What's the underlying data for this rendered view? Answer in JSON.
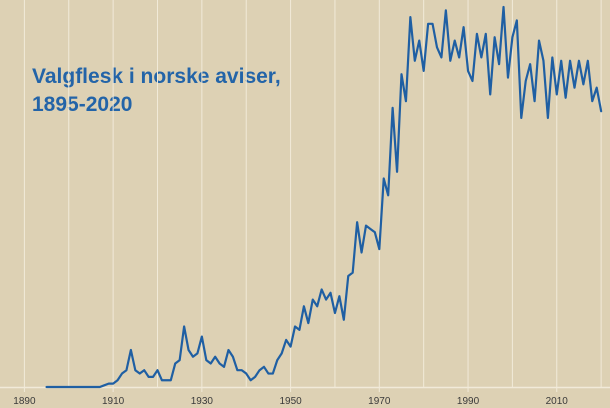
{
  "chart_data": {
    "type": "line",
    "title_lines": [
      "Valgflesk i norske aviser,",
      "1895-2020"
    ],
    "xlabel": "",
    "ylabel": "",
    "xlim": [
      1884.5,
      2022
    ],
    "ylim": [
      0,
      100
    ],
    "grid": "vertical",
    "x_ticks": [
      1890,
      1910,
      1930,
      1950,
      1970,
      1990,
      2010
    ],
    "x_tick_labels": [
      "1890",
      "1910",
      "1930",
      "1950",
      "1970",
      "1990",
      "2010"
    ],
    "series": [
      {
        "name": "",
        "x": [
          1895,
          1896,
          1897,
          1898,
          1899,
          1900,
          1901,
          1902,
          1903,
          1904,
          1905,
          1906,
          1907,
          1908,
          1909,
          1910,
          1911,
          1912,
          1913,
          1914,
          1915,
          1916,
          1917,
          1918,
          1919,
          1920,
          1921,
          1922,
          1923,
          1924,
          1925,
          1926,
          1927,
          1928,
          1929,
          1930,
          1931,
          1932,
          1933,
          1934,
          1935,
          1936,
          1937,
          1938,
          1939,
          1940,
          1941,
          1942,
          1943,
          1944,
          1945,
          1946,
          1947,
          1948,
          1949,
          1950,
          1951,
          1952,
          1953,
          1954,
          1955,
          1956,
          1957,
          1958,
          1959,
          1960,
          1961,
          1962,
          1963,
          1964,
          1965,
          1966,
          1967,
          1968,
          1969,
          1970,
          1971,
          1972,
          1973,
          1974,
          1975,
          1976,
          1977,
          1978,
          1979,
          1980,
          1981,
          1982,
          1983,
          1984,
          1985,
          1986,
          1987,
          1988,
          1989,
          1990,
          1991,
          1992,
          1993,
          1994,
          1995,
          1996,
          1997,
          1998,
          1999,
          2000,
          2001,
          2002,
          2003,
          2004,
          2005,
          2006,
          2007,
          2008,
          2009,
          2010,
          2011,
          2012,
          2013,
          2014,
          2015,
          2016,
          2017,
          2018,
          2019,
          2020
        ],
        "y": [
          0,
          0,
          0,
          0,
          0,
          0,
          0,
          0,
          0,
          0,
          0,
          0,
          0,
          0.5,
          1,
          1,
          2,
          4,
          5,
          11,
          5,
          4,
          5,
          3,
          3,
          5,
          2,
          2,
          2,
          7,
          8,
          18,
          11,
          9,
          10,
          15,
          8,
          7,
          9,
          7,
          6,
          11,
          9,
          5,
          5,
          4,
          2,
          3,
          5,
          6,
          4,
          4,
          8,
          10,
          14,
          12,
          18,
          17,
          24,
          19,
          26,
          24,
          29,
          26,
          28,
          22,
          27,
          20,
          33,
          34,
          49,
          40,
          48,
          47,
          46,
          41,
          62,
          57,
          83,
          64,
          93,
          85,
          110,
          97,
          103,
          94,
          108,
          108,
          101,
          98,
          112,
          97,
          103,
          98,
          107,
          94,
          91,
          105,
          98,
          105,
          87,
          104,
          96,
          113,
          92,
          104,
          109,
          80,
          91,
          96,
          85,
          103,
          97,
          80,
          98,
          87,
          97,
          86,
          97,
          89,
          97,
          90,
          97,
          85,
          89,
          82
        ]
      }
    ]
  }
}
